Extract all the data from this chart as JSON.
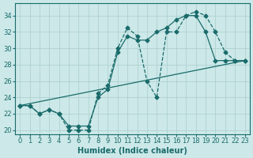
{
  "xlabel": "Humidex (Indice chaleur)",
  "xlim": [
    -0.5,
    23.5
  ],
  "ylim": [
    19.5,
    35.5
  ],
  "yticks": [
    20,
    22,
    24,
    26,
    28,
    30,
    32,
    34
  ],
  "xticks": [
    0,
    1,
    2,
    3,
    4,
    5,
    6,
    7,
    8,
    9,
    10,
    11,
    12,
    13,
    14,
    15,
    16,
    17,
    18,
    19,
    20,
    21,
    22,
    23
  ],
  "bg_color": "#cce8e8",
  "line_color": "#1a6b6b",
  "grid_color": "#aacece",
  "line1_x": [
    0,
    1,
    2,
    3,
    4,
    5,
    6,
    7,
    8,
    9,
    10,
    11,
    12,
    13,
    14,
    15,
    16,
    17,
    18,
    19,
    20,
    21,
    22,
    23
  ],
  "line1_y": [
    23.0,
    23.0,
    22.0,
    22.5,
    22.0,
    20.0,
    20.0,
    20.0,
    24.5,
    25.5,
    30.0,
    32.5,
    31.5,
    26.0,
    24.0,
    32.0,
    32.0,
    34.0,
    34.5,
    34.0,
    32.0,
    29.5,
    28.5,
    28.5
  ],
  "line2_x": [
    0,
    1,
    2,
    3,
    4,
    5,
    6,
    7,
    8,
    9,
    10,
    11,
    12,
    13,
    14,
    15,
    16,
    17,
    18,
    19,
    20,
    21,
    22,
    23
  ],
  "line2_y": [
    23.0,
    23.0,
    22.0,
    22.5,
    22.0,
    20.5,
    20.5,
    20.5,
    24.0,
    25.0,
    29.5,
    31.5,
    31.0,
    31.0,
    32.0,
    32.5,
    33.5,
    34.0,
    34.0,
    32.0,
    28.5,
    28.5,
    28.5,
    28.5
  ],
  "line3_x": [
    0,
    23
  ],
  "line3_y": [
    23.0,
    28.5
  ]
}
